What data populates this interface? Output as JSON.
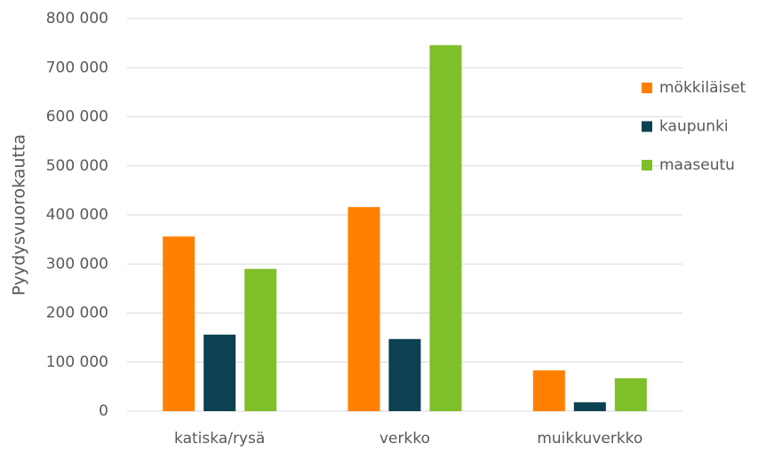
{
  "chart_data": {
    "type": "bar",
    "y_label": "Pyydysvuorokautta",
    "categories": [
      "katiska/rysä",
      "verkko",
      "muikkuverkko"
    ],
    "series": [
      {
        "name": "mökkiläiset",
        "color": "#ff8000",
        "values": [
          356000,
          416000,
          83000
        ]
      },
      {
        "name": "kaupunki",
        "color": "#0b4150",
        "values": [
          156000,
          147000,
          18000
        ]
      },
      {
        "name": "maaseutu",
        "color": "#7fbf2a",
        "values": [
          290000,
          746000,
          67000
        ]
      }
    ],
    "ylim": [
      0,
      800000
    ],
    "yticks": [
      0,
      {
        "value": 100000,
        "label": "100 000"
      },
      {
        "value": 200000,
        "label": "200 000"
      },
      {
        "value": 300000,
        "label": "300 000"
      },
      {
        "value": 400000,
        "label": "400 000"
      },
      {
        "value": 500000,
        "label": "500 000"
      },
      {
        "value": 600000,
        "label": "600 000"
      },
      {
        "value": 700000,
        "label": "700 000"
      },
      {
        "value": 800000,
        "label": "800 000"
      }
    ],
    "grid": true,
    "legend": "right"
  }
}
